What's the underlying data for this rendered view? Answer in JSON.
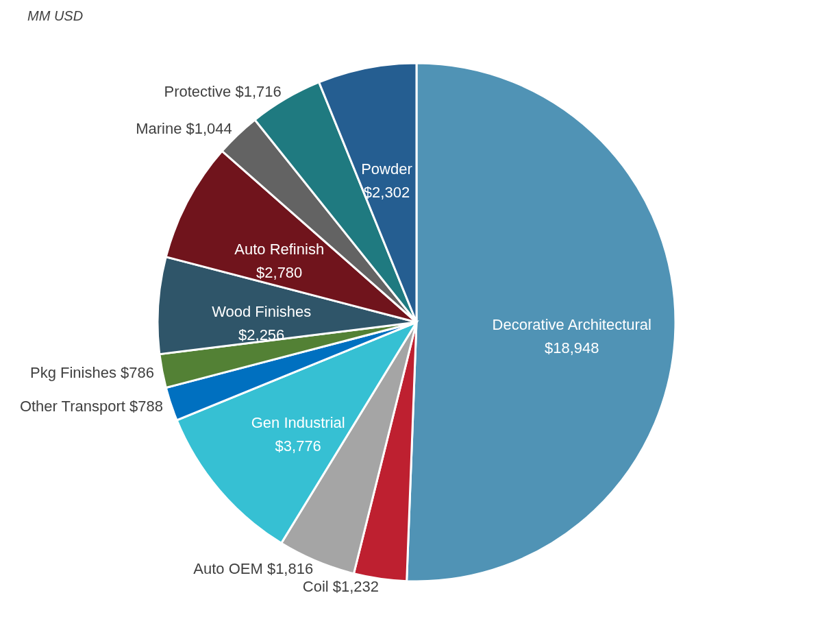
{
  "chart_data": {
    "type": "pie",
    "title": "MM USD",
    "categories": [
      "Decorative Architectural",
      "Coil",
      "Auto OEM",
      "Gen Industrial",
      "Other Transport",
      "Pkg Finishes",
      "Wood Finishes",
      "Auto Refinish",
      "Marine",
      "Protective",
      "Powder"
    ],
    "values": [
      18948,
      1232,
      1816,
      3776,
      788,
      786,
      2256,
      2780,
      1044,
      1716,
      2302
    ],
    "value_labels": [
      "$18,948",
      "$1,232",
      "$1,816",
      "$3,776",
      "$788",
      "$786",
      "$2,256",
      "$2,780",
      "$1,044",
      "$1,716",
      "$2,302"
    ],
    "colors": [
      "#5093b5",
      "#be2030",
      "#a5a5a5",
      "#36c0d3",
      "#0070c0",
      "#538135",
      "#2f5569",
      "#70141c",
      "#636363",
      "#1f7a80",
      "#255e91"
    ]
  }
}
